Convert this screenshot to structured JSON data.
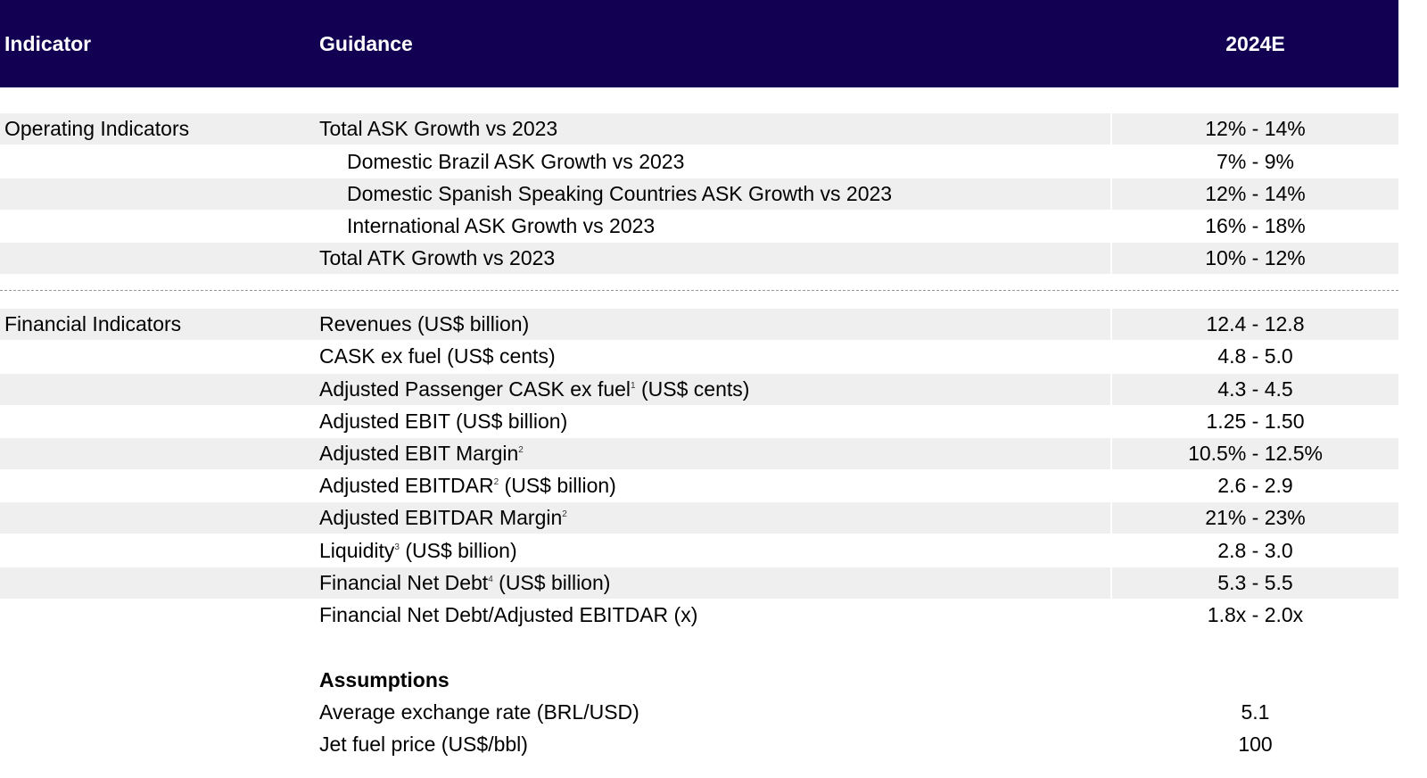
{
  "header": {
    "indicator": "Indicator",
    "guidance": "Guidance",
    "year": "2024E"
  },
  "operating": {
    "section_label": "Operating Indicators",
    "rows": [
      {
        "label": "Total ASK Growth vs 2023",
        "value": "12% - 14%"
      },
      {
        "label": "Domestic Brazil ASK Growth vs 2023",
        "value": "7% - 9%"
      },
      {
        "label": "Domestic Spanish Speaking Countries ASK Growth vs 2023",
        "value": "12% - 14%"
      },
      {
        "label": "International ASK Growth vs 2023",
        "value": "16% - 18%"
      },
      {
        "label": "Total ATK Growth vs 2023",
        "value": "10% - 12%"
      }
    ]
  },
  "financial": {
    "section_label": "Financial Indicators",
    "rows": [
      {
        "label": "Revenues (US$ billion)",
        "value": "12.4 - 12.8"
      },
      {
        "label": "CASK ex fuel (US$ cents)",
        "value": "4.8 - 5.0"
      },
      {
        "label_pre": "Adjusted Passenger CASK ex fuel",
        "sup": "1",
        "label_post": " (US$ cents)",
        "value": "4.3 - 4.5"
      },
      {
        "label": "Adjusted EBIT (US$ billion)",
        "value": "1.25 - 1.50"
      },
      {
        "label_pre": "Adjusted EBIT Margin",
        "sup": "2",
        "value": "10.5% - 12.5%"
      },
      {
        "label_pre": "Adjusted EBITDAR",
        "sup": "2",
        "label_post": " (US$ billion)",
        "value": "2.6 - 2.9"
      },
      {
        "label_pre": "Adjusted EBITDAR Margin",
        "sup": "2",
        "value": "21% - 23%"
      },
      {
        "label_pre": "Liquidity",
        "sup": "3",
        "label_post": " (US$ billion)",
        "value": "2.8 - 3.0"
      },
      {
        "label_pre": "Financial Net Debt",
        "sup": "4",
        "label_post": " (US$ billion)",
        "value": "5.3 - 5.5"
      },
      {
        "label": "Financial Net Debt/Adjusted EBITDAR (x)",
        "value": "1.8x - 2.0x"
      }
    ]
  },
  "assumptions": {
    "title": "Assumptions",
    "rows": [
      {
        "label": "Average exchange rate (BRL/USD)",
        "value": "5.1"
      },
      {
        "label": "Jet fuel price (US$/bbl)",
        "value": "100"
      }
    ]
  },
  "colors": {
    "header_bg": "#120052",
    "stripe": "#efefef"
  }
}
